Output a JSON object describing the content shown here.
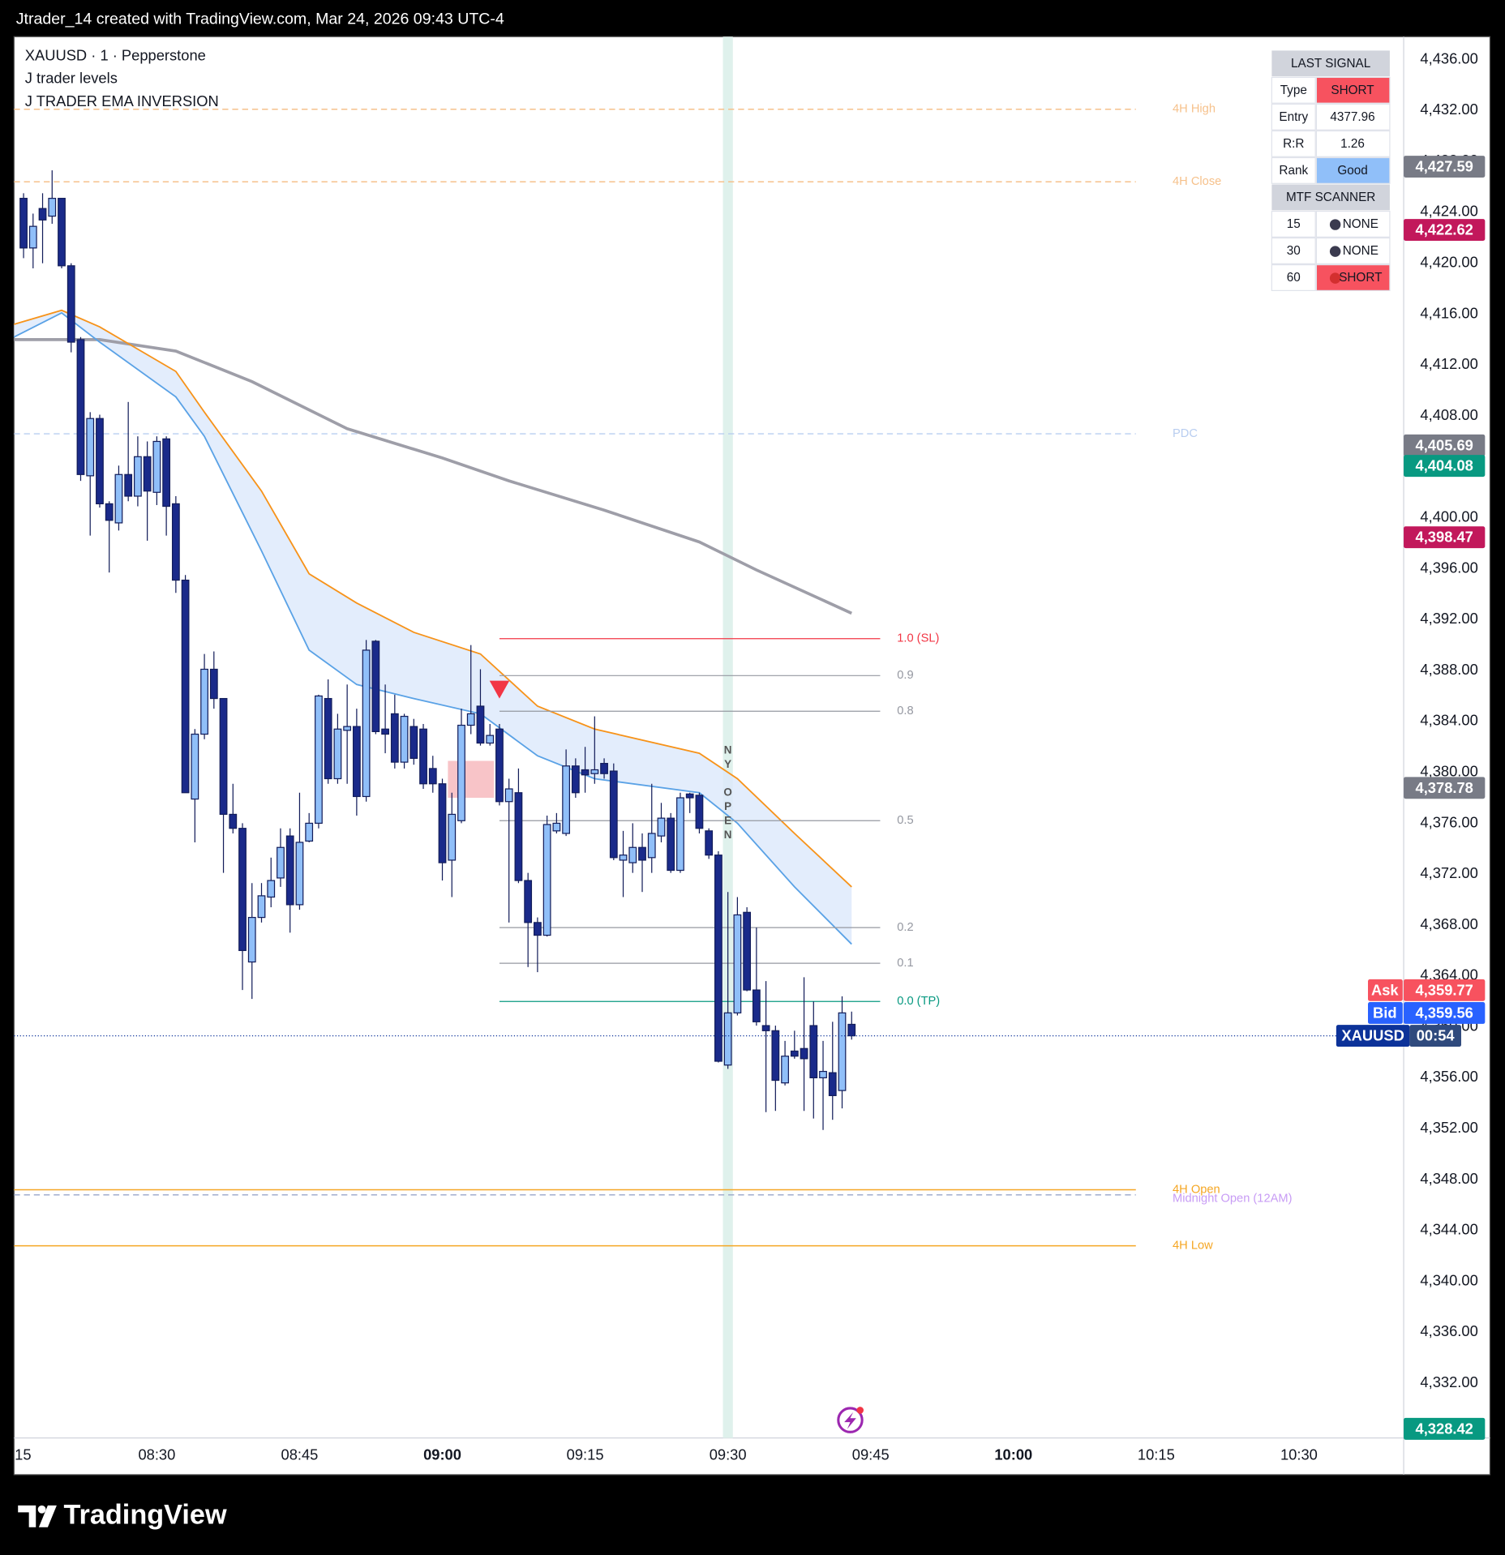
{
  "header": "Jtrader_14 created with TradingView.com, Mar 24, 2026 09:43 UTC-4",
  "footer": "TradingView",
  "chart_data": {
    "type": "candlestick",
    "legend": [
      "XAUUSD · 1 · Pepperstone",
      "J trader levels",
      "J TRADER EMA INVERSION"
    ],
    "x": [
      "08:16",
      "08:17",
      "08:18",
      "08:19",
      "08:20",
      "08:21",
      "08:22",
      "08:23",
      "08:24",
      "08:25",
      "08:26",
      "08:27",
      "08:28",
      "08:29",
      "08:30",
      "08:31",
      "08:32",
      "08:33",
      "08:34",
      "08:35",
      "08:36",
      "08:37",
      "08:38",
      "08:39",
      "08:40",
      "08:41",
      "08:42",
      "08:43",
      "08:44",
      "08:45",
      "08:46",
      "08:47",
      "08:48",
      "08:49",
      "08:50",
      "08:51",
      "08:52",
      "08:53",
      "08:54",
      "08:55",
      "08:56",
      "08:57",
      "08:58",
      "08:59",
      "09:00",
      "09:01",
      "09:02",
      "09:03",
      "09:04",
      "09:05",
      "09:06",
      "09:07",
      "09:08",
      "09:09",
      "09:10",
      "09:11",
      "09:12",
      "09:13",
      "09:14",
      "09:15",
      "09:16",
      "09:17",
      "09:18",
      "09:19",
      "09:20",
      "09:21",
      "09:22",
      "09:23",
      "09:24",
      "09:25",
      "09:26",
      "09:27",
      "09:28",
      "09:29",
      "09:30",
      "09:31",
      "09:32",
      "09:33",
      "09:34",
      "09:35",
      "09:36",
      "09:37",
      "09:38",
      "09:39",
      "09:40",
      "09:41",
      "09:42",
      "09:43"
    ],
    "open": [
      4425.1,
      4421.2,
      4424.3,
      4423.7,
      4425.1,
      4419.8,
      4414.0,
      4403.3,
      4407.8,
      4401.1,
      4399.6,
      4403.4,
      4401.7,
      4404.8,
      4402.0,
      4406.2,
      4401.1,
      4395.1,
      4377.9,
      4383.0,
      4388.1,
      4385.8,
      4376.7,
      4375.6,
      4365.1,
      4368.6,
      4370.2,
      4371.7,
      4375.0,
      4369.6,
      4374.6,
      4376.0,
      4385.8,
      4379.5,
      4383.3,
      4383.6,
      4378.1,
      4390.3,
      4383.4,
      4384.6,
      4380.8,
      4383.6,
      4383.4,
      4380.3,
      4379.1,
      4373.1,
      4376.2,
      4383.7,
      4385.2,
      4382.3,
      4383.4,
      4377.7,
      4378.4,
      4371.5,
      4368.2,
      4367.2,
      4375.4,
      4375.2,
      4380.5,
      4380.2,
      4379.9,
      4380.7,
      4380.1,
      4373.1,
      4372.9,
      4374.1,
      4373.3,
      4375.0,
      4376.4,
      4372.3,
      4378.3,
      4378.2,
      4375.4,
      4373.5,
      4357.0,
      4361.1,
      4369.0,
      4362.9,
      4360.1,
      4359.7,
      4355.6,
      4358.1,
      4358.3,
      4360.1,
      4356.0,
      4356.4,
      4355.0,
      4360.2
    ],
    "high": [
      4425.5,
      4423.9,
      4425.5,
      4427.3,
      4425.1,
      4420.0,
      4414.2,
      4408.3,
      4408.1,
      4401.3,
      4404.1,
      4409.1,
      4406.4,
      4406.0,
      4406.4,
      4406.4,
      4401.7,
      4395.5,
      4383.4,
      4389.3,
      4389.5,
      4385.8,
      4379.1,
      4376.0,
      4371.3,
      4371.3,
      4373.3,
      4375.6,
      4375.6,
      4378.4,
      4376.8,
      4386.1,
      4387.3,
      4384.6,
      4386.9,
      4385.0,
      4390.4,
      4390.4,
      4386.9,
      4386.1,
      4384.6,
      4384.2,
      4383.8,
      4381.3,
      4379.5,
      4378.4,
      4385.0,
      4390.0,
      4388.1,
      4383.8,
      4383.8,
      4379.5,
      4380.3,
      4372.1,
      4368.6,
      4376.6,
      4376.8,
      4381.8,
      4381.1,
      4382.0,
      4384.4,
      4381.1,
      4380.7,
      4375.4,
      4376.0,
      4375.2,
      4379.1,
      4377.6,
      4376.8,
      4378.4,
      4378.4,
      4378.4,
      4375.6,
      4373.8,
      4370.6,
      4370.2,
      4369.4,
      4367.8,
      4363.6,
      4360.1,
      4358.9,
      4359.7,
      4363.9,
      4362.0,
      4358.9,
      4360.4,
      4362.4,
      4361.2
    ],
    "low": [
      4420.4,
      4419.6,
      4420.0,
      4423.1,
      4419.6,
      4413.0,
      4402.9,
      4398.6,
      4400.8,
      4395.7,
      4399.0,
      4401.3,
      4400.9,
      4398.2,
      4401.0,
      4398.6,
      4394.1,
      4378.4,
      4374.5,
      4382.6,
      4385.0,
      4372.1,
      4375.2,
      4362.9,
      4362.2,
      4368.2,
      4369.4,
      4371.0,
      4367.4,
      4369.2,
      4374.5,
      4375.6,
      4379.1,
      4379.1,
      4379.1,
      4376.6,
      4377.7,
      4383.0,
      4381.5,
      4380.3,
      4380.3,
      4380.6,
      4378.7,
      4378.4,
      4371.5,
      4370.2,
      4376.0,
      4383.0,
      4382.1,
      4382.1,
      4377.4,
      4368.2,
      4371.3,
      4364.7,
      4364.3,
      4367.1,
      4375.2,
      4375.0,
      4378.0,
      4378.4,
      4379.1,
      4379.5,
      4373.1,
      4370.2,
      4372.1,
      4370.6,
      4372.1,
      4374.5,
      4372.1,
      4372.1,
      4376.8,
      4375.2,
      4373.2,
      4357.2,
      4356.7,
      4360.9,
      4362.8,
      4360.1,
      4353.3,
      4353.4,
      4355.4,
      4357.5,
      4353.4,
      4352.8,
      4351.9,
      4352.7,
      4353.6,
      4359.0
    ],
    "close": [
      4421.2,
      4422.9,
      4423.4,
      4425.1,
      4419.8,
      4413.8,
      4403.4,
      4407.8,
      4401.1,
      4399.8,
      4403.4,
      4401.7,
      4404.8,
      4402.1,
      4406.0,
      4400.9,
      4395.1,
      4378.4,
      4383.0,
      4388.1,
      4385.8,
      4376.7,
      4375.6,
      4366.0,
      4368.6,
      4370.3,
      4371.5,
      4374.1,
      4369.6,
      4374.5,
      4376.0,
      4386.0,
      4379.5,
      4383.4,
      4383.6,
      4378.1,
      4389.6,
      4383.2,
      4383.0,
      4380.8,
      4384.4,
      4381.1,
      4379.1,
      4379.1,
      4372.9,
      4376.7,
      4383.7,
      4384.6,
      4382.3,
      4382.9,
      4377.7,
      4378.7,
      4371.5,
      4368.2,
      4367.2,
      4375.9,
      4376.0,
      4380.5,
      4378.4,
      4379.8,
      4380.2,
      4379.9,
      4373.3,
      4373.5,
      4374.1,
      4373.1,
      4375.2,
      4376.4,
      4372.3,
      4378.0,
      4378.0,
      4375.6,
      4373.5,
      4357.3,
      4361.1,
      4368.8,
      4362.9,
      4360.4,
      4359.7,
      4355.8,
      4357.7,
      4357.7,
      4357.5,
      4356.0,
      4356.5,
      4354.6,
      4361.1,
      4359.3
    ],
    "up_color": "#90bff9",
    "down_color": "#1a2a8a",
    "wick_color": "#131d5a",
    "xlim": [
      "08:15",
      "10:41"
    ],
    "xticks": [
      {
        "value": "08:15",
        "label": "15"
      },
      "08:30",
      "08:45",
      "09:00",
      "09:15",
      "09:30",
      "09:45",
      "10:00",
      "10:15",
      "10:30"
    ],
    "ylim": [
      4327.7,
      4437.8
    ],
    "yticks": [
      {
        "value": 4332,
        "label": "4,332.00"
      },
      {
        "value": 4336,
        "label": "4,336.00"
      },
      {
        "value": 4340,
        "label": "4,340.00"
      },
      {
        "value": 4344,
        "label": "4,344.00"
      },
      {
        "value": 4348,
        "label": "4,348.00"
      },
      {
        "value": 4352,
        "label": "4,352.00"
      },
      {
        "value": 4356,
        "label": "4,356.00"
      },
      {
        "value": 4360,
        "label": "4,360.00"
      },
      {
        "value": 4364,
        "label": "4,364.00"
      },
      {
        "value": 4368,
        "label": "4,368.00"
      },
      {
        "value": 4372,
        "label": "4,372.00"
      },
      {
        "value": 4376,
        "label": "4,376.00"
      },
      {
        "value": 4380,
        "label": "4,380.00"
      },
      {
        "value": 4384,
        "label": "4,384.00"
      },
      {
        "value": 4388,
        "label": "4,388.00"
      },
      {
        "value": 4392,
        "label": "4,392.00"
      },
      {
        "value": 4396,
        "label": "4,396.00"
      },
      {
        "value": 4400,
        "label": "4,400.00"
      },
      {
        "value": 4404,
        "label": "4,404.00"
      },
      {
        "value": 4408,
        "label": "4,408.00"
      },
      {
        "value": 4412,
        "label": "4,412.00"
      },
      {
        "value": 4416,
        "label": "4,416.00"
      },
      {
        "value": 4420,
        "label": "4,420.00"
      },
      {
        "value": 4424,
        "label": "4,424.00"
      },
      {
        "value": 4428,
        "label": "4,428.00"
      },
      {
        "value": 4432,
        "label": "4,432.00"
      },
      {
        "value": 4436,
        "label": "4,436.00"
      }
    ],
    "grid": false,
    "ema_lines": [
      {
        "color": "#9e9ea8",
        "width": 3,
        "x": [
          "08:15",
          "08:24",
          "08:32",
          "08:40",
          "08:50",
          "09:00",
          "09:07",
          "09:17",
          "09:27",
          "09:33",
          "09:43"
        ],
        "values": [
          4414.0,
          4414.0,
          4413.1,
          4410.7,
          4407.0,
          4404.7,
          4402.9,
          4400.6,
          4398.1,
          4395.9,
          4392.5
        ]
      },
      {
        "color": "#f7931a",
        "width": 1.5,
        "x": [
          "08:15",
          "08:20",
          "08:24",
          "08:32",
          "08:35",
          "08:41",
          "08:46",
          "08:51",
          "08:57",
          "09:04",
          "09:10",
          "09:16",
          "09:27",
          "09:31",
          "09:37",
          "09:43"
        ],
        "values": [
          4415.2,
          4416.3,
          4415.0,
          4411.5,
          4408.3,
          4402.1,
          4395.6,
          4393.3,
          4391.0,
          4389.3,
          4385.2,
          4383.4,
          4381.5,
          4379.5,
          4375.2,
          4371.0
        ]
      },
      {
        "color": "#5aa2e6",
        "width": 1.5,
        "x": [
          "08:15",
          "08:20",
          "08:24",
          "08:32",
          "08:35",
          "08:41",
          "08:46",
          "08:51",
          "08:57",
          "09:04",
          "09:10",
          "09:16",
          "09:27",
          "09:31",
          "09:37",
          "09:43"
        ],
        "values": [
          4414.2,
          4416.1,
          4413.8,
          4409.5,
          4406.4,
          4397.4,
          4389.6,
          4386.9,
          4385.8,
          4384.6,
          4381.3,
          4379.5,
          4378.4,
          4376.0,
          4371.0,
          4366.5
        ]
      }
    ],
    "band_color": "#dce9fb",
    "levels": [
      {
        "label": "4H High",
        "value": 4432.1,
        "color": "#f6c18b",
        "dashed": true
      },
      {
        "label": "4H Close",
        "value": 4426.4,
        "color": "#f6c18b",
        "dashed": true
      },
      {
        "label": "PDC",
        "value": 4406.6,
        "color": "#b8cdf0",
        "dashed": true
      },
      {
        "label": "4H Open",
        "value": 4347.2,
        "color": "#f5a623",
        "dashed": false
      },
      {
        "label": "Midnight Open (12AM)",
        "value": 4346.8,
        "color": "#c89cf5",
        "line_color": "#9aa6c9",
        "dashed": true
      },
      {
        "label": "4H Low",
        "value": 4342.8,
        "color": "#f5a623",
        "dashed": false
      }
    ],
    "fib": {
      "x": [
        "09:06",
        "09:46"
      ],
      "levels": [
        {
          "label": "1.0 (SL)",
          "value": 4390.5,
          "color": "#f23645"
        },
        {
          "label": "0.9",
          "value": 4387.6,
          "color": "#9598a1"
        },
        {
          "label": "0.8",
          "value": 4384.8,
          "color": "#9598a1"
        },
        {
          "label": "0.5",
          "value": 4376.2,
          "color": "#9598a1"
        },
        {
          "label": "0.2",
          "value": 4367.8,
          "color": "#9598a1"
        },
        {
          "label": "0.1",
          "value": 4365.0,
          "color": "#9598a1"
        },
        {
          "label": "0.0 (TP)",
          "value": 4362.0,
          "color": "#089981"
        }
      ]
    },
    "signal": {
      "x": "09:06",
      "value": 4386.5,
      "color": "#f23645"
    },
    "zone": {
      "x": [
        "09:01",
        "09:05"
      ],
      "values": [
        4380.9,
        4378.0
      ],
      "color": "#f8c4c8"
    },
    "session": {
      "x": "09:30",
      "label": "NY OPEN",
      "color": "#dff1ec"
    },
    "price_labels": [
      {
        "value": 4427.59,
        "label": "4,427.59",
        "color": "#787b86"
      },
      {
        "value": 4422.62,
        "label": "4,422.62",
        "color": "#c2185b"
      },
      {
        "value": 4405.69,
        "label": "4,405.69",
        "color": "#787b86"
      },
      {
        "value": 4404.08,
        "label": "4,404.08",
        "color": "#089981"
      },
      {
        "value": 4398.47,
        "label": "4,398.47",
        "color": "#c2185b"
      },
      {
        "value": 4378.78,
        "label": "4,378.78",
        "color": "#787b86"
      },
      {
        "value": 4328.42,
        "label": "4,328.42",
        "color": "#089981"
      }
    ],
    "quote": {
      "symbol": "XAUUSD",
      "countdown": "00:54",
      "color": "#0c3299",
      "ask": {
        "label": "Ask",
        "value": 4359.77,
        "value_label": "4,359.77",
        "color": "#f7525f"
      },
      "bid": {
        "label": "Bid",
        "value": 4359.56,
        "value_label": "4,359.56",
        "color": "#2962ff"
      }
    }
  },
  "signal_table": {
    "title": "LAST SIGNAL",
    "header_color": "#d1d4dc",
    "rows": [
      {
        "label": "Type",
        "value": "SHORT",
        "color": "#f7525f"
      },
      {
        "label": "Entry",
        "value": 4377.96
      },
      {
        "label": "R:R",
        "value": 1.26
      },
      {
        "label": "Rank",
        "value": "Good",
        "color": "#90bff9"
      }
    ],
    "scanner_title": "MTF SCANNER",
    "scanner_rows": [
      {
        "label": 15,
        "value": "NONE",
        "dot": "#3b3b4f"
      },
      {
        "label": 30,
        "value": "NONE",
        "dot": "#3b3b4f"
      },
      {
        "label": 60,
        "value": "SHORT",
        "dot": "#d32f2f",
        "color": "#f7525f"
      }
    ]
  }
}
